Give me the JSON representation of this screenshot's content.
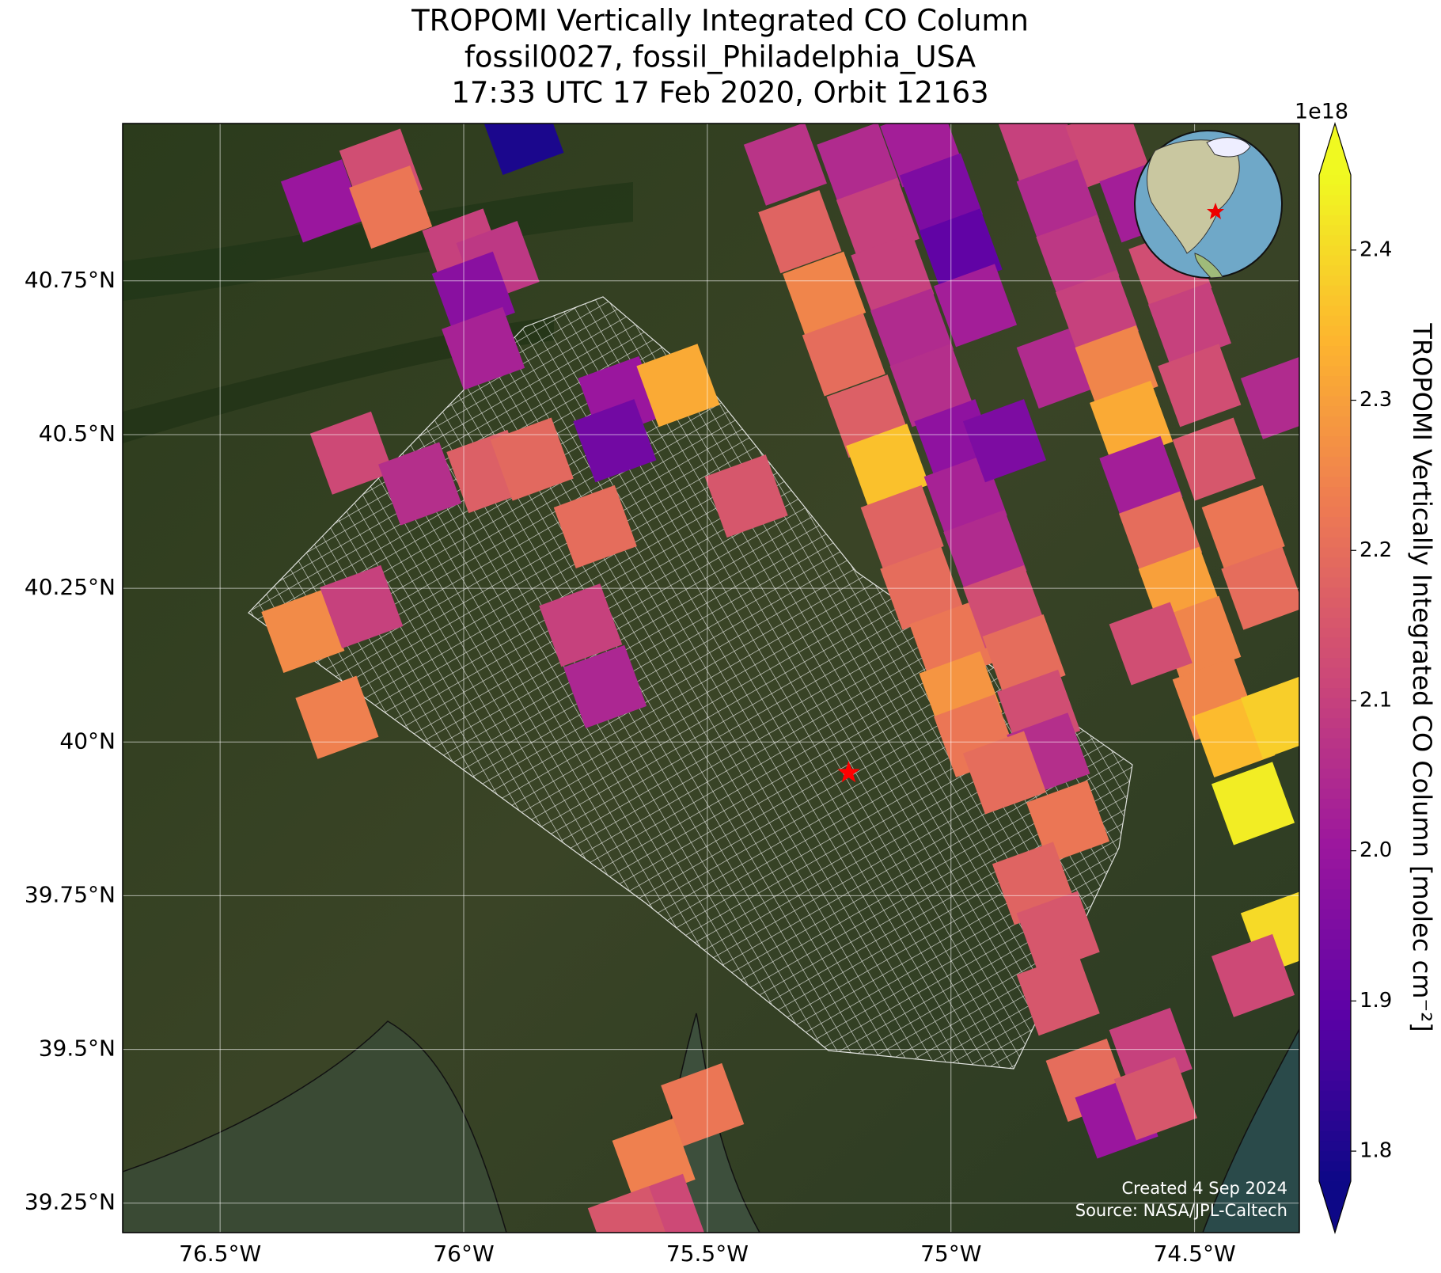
{
  "chart_data": {
    "type": "tile-map",
    "title": "TROPOMI Vertically Integrated CO Column",
    "subtitle": [
      "fossil0027, fossil_Philadelphia_USA",
      "17:33 UTC 17 Feb 2020, Orbit 12163"
    ],
    "xlim": [
      -76.7,
      -74.285
    ],
    "ylim": [
      39.202,
      41.006
    ],
    "xticks": [
      {
        "value": -76.5,
        "label": "76.5°W"
      },
      {
        "value": -76,
        "label": "76°W"
      },
      {
        "value": -75.5,
        "label": "75.5°W"
      },
      {
        "value": -75,
        "label": "75°W"
      },
      {
        "value": -74.5,
        "label": "74.5°W"
      }
    ],
    "yticks": [
      {
        "value": 40.75,
        "label": "40.75°N"
      },
      {
        "value": 40.5,
        "label": "40.5°N"
      },
      {
        "value": 40.25,
        "label": "40.25°N"
      },
      {
        "value": 40,
        "label": "40°N"
      },
      {
        "value": 39.75,
        "label": "39.75°N"
      },
      {
        "value": 39.5,
        "label": "39.5°N"
      },
      {
        "value": 39.25,
        "label": "39.25°N"
      }
    ],
    "grid": true,
    "colormap": "plasma",
    "clim": [
      1.78,
      2.45
    ],
    "cticks": [
      1.8,
      1.9,
      {
        "value": 2,
        "label": "2.0"
      },
      2.1,
      2.2,
      2.3,
      2.4
    ],
    "colorbar_exponent": "1e18",
    "colorbar_label": "TROPOMI Vertically Integrated CO Column [molec cm⁻²]",
    "tiles": {
      "lon": [
        -76.29,
        -76.17,
        -76.15,
        -76.0,
        -75.93,
        -75.98,
        -75.96,
        -75.88,
        -76.23,
        -76.09,
        -75.95,
        -75.86,
        -75.68,
        -75.69,
        -75.56,
        -75.73,
        -75.42,
        -75.76,
        -76.33,
        -76.21,
        -76.26,
        -75.71,
        -75.34,
        -75.31,
        -75.26,
        -75.22,
        -75.17,
        -75.13,
        -75.1,
        -75.06,
        -75.0,
        -74.98,
        -74.95,
        -75.19,
        -75.15,
        -75.12,
        -75.08,
        -75.04,
        -74.99,
        -74.97,
        -74.93,
        -74.89,
        -74.85,
        -74.82,
        -74.8,
        -75.06,
        -75.02,
        -74.98,
        -74.95,
        -74.89,
        -74.78,
        -74.82,
        -74.78,
        -74.74,
        -74.7,
        -74.66,
        -74.63,
        -74.61,
        -74.57,
        -74.53,
        -74.49,
        -74.68,
        -74.61,
        -74.55,
        -74.51,
        -74.49,
        -74.46,
        -74.4,
        -74.36,
        -74.59,
        -74.46,
        -74.42,
        -74.38,
        -74.32,
        -74.32,
        -74.38,
        -74.89,
        -74.76,
        -74.83,
        -74.78,
        -74.78,
        -74.72,
        -74.59,
        -74.66,
        -74.58,
        -75.51,
        -75.61,
        -75.59,
        -75.66,
        -74.32
      ],
      "lat": [
        40.88,
        40.93,
        40.87,
        40.8,
        40.78,
        40.73,
        40.64,
        40.99,
        40.47,
        40.42,
        40.44,
        40.46,
        40.56,
        40.49,
        40.58,
        40.35,
        40.4,
        40.19,
        40.18,
        40.22,
        40.04,
        40.09,
        40.94,
        40.83,
        40.73,
        40.63,
        40.53,
        40.45,
        40.35,
        40.25,
        40.16,
        40.08,
        40.01,
        40.94,
        40.85,
        40.76,
        40.67,
        40.58,
        40.49,
        40.4,
        40.31,
        40.22,
        40.14,
        40.05,
        39.98,
        40.97,
        40.89,
        40.8,
        40.71,
        40.49,
        40.61,
        40.98,
        40.88,
        40.79,
        40.7,
        40.61,
        40.52,
        40.43,
        40.34,
        40.25,
        40.17,
        40.97,
        40.88,
        40.77,
        40.68,
        40.58,
        40.46,
        40.35,
        40.25,
        40.16,
        40.07,
        40.01,
        39.9,
        40.04,
        39.69,
        39.62,
        39.95,
        39.87,
        39.77,
        39.69,
        39.59,
        39.45,
        39.5,
        39.39,
        39.42,
        39.41,
        39.32,
        39.23,
        39.21,
        40.56
      ],
      "values": [
        2.0,
        2.13,
        2.22,
        2.1,
        2.08,
        1.97,
        2.03,
        1.8,
        2.12,
        2.06,
        2.17,
        2.19,
        2.0,
        1.93,
        2.32,
        2.2,
        2.15,
        2.1,
        2.26,
        2.1,
        2.24,
        2.04,
        2.07,
        2.18,
        2.25,
        2.2,
        2.17,
        2.36,
        2.18,
        2.2,
        2.22,
        2.28,
        2.22,
        2.05,
        2.1,
        2.1,
        2.05,
        2.06,
        1.98,
        2.03,
        2.05,
        2.13,
        2.2,
        2.13,
        2.06,
        2.02,
        1.95,
        1.9,
        2.02,
        1.95,
        2.05,
        2.1,
        2.05,
        2.08,
        2.1,
        2.25,
        2.32,
        2.02,
        2.2,
        2.3,
        2.25,
        2.12,
        2.02,
        2.13,
        2.1,
        2.13,
        2.15,
        2.22,
        2.2,
        2.13,
        2.25,
        2.35,
        2.43,
        2.38,
        2.4,
        2.12,
        2.2,
        2.22,
        2.18,
        2.15,
        2.15,
        2.2,
        2.1,
        2.0,
        2.15,
        2.22,
        2.24,
        2.12,
        2.15,
        2.05
      ]
    },
    "site": {
      "lon": -75.21,
      "lat": 39.95
    },
    "annotations": [
      "Created 4 Sep 2024",
      "Source: NASA/JPL-Caltech"
    ]
  }
}
